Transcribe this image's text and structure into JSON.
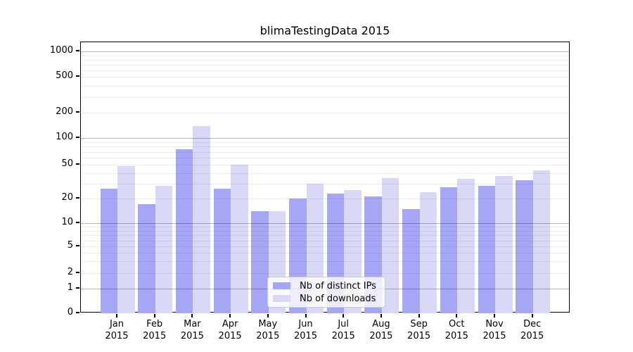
{
  "chart_data": {
    "type": "bar",
    "title": "blimaTestingData 2015",
    "year_label": "2015",
    "months": [
      "Jan",
      "Feb",
      "Mar",
      "Apr",
      "May",
      "Jun",
      "Jul",
      "Aug",
      "Sep",
      "Oct",
      "Nov",
      "Dec"
    ],
    "categories": [
      "Jan 2015",
      "Feb 2015",
      "Mar 2015",
      "Apr 2015",
      "May 2015",
      "Jun 2015",
      "Jul 2015",
      "Aug 2015",
      "Sep 2015",
      "Oct 2015",
      "Nov 2015",
      "Dec 2015"
    ],
    "series": [
      {
        "name": "Nb of distinct IPs",
        "color": "#a6a6f7",
        "values": [
          26,
          17,
          75,
          26,
          14,
          20,
          23,
          21,
          15,
          27,
          28,
          33
        ]
      },
      {
        "name": "Nb of downloads",
        "color": "#d9d9f7",
        "values": [
          48,
          28,
          140,
          50,
          14,
          30,
          25,
          35,
          24,
          34,
          37,
          43
        ]
      }
    ],
    "xlabel": "",
    "ylabel": "",
    "y_ticks": [
      0,
      1,
      2,
      5,
      10,
      20,
      50,
      100,
      200,
      500,
      1000
    ],
    "y_scale": "log-like",
    "ylim": [
      0,
      1280
    ],
    "grid": true,
    "legend_position": "lower center"
  },
  "colors": {
    "grid_minor": "#ededed",
    "grid_major": "#bdbdbd",
    "spine": "#000000",
    "legend_border": "#cccccc",
    "text": "#000000"
  }
}
